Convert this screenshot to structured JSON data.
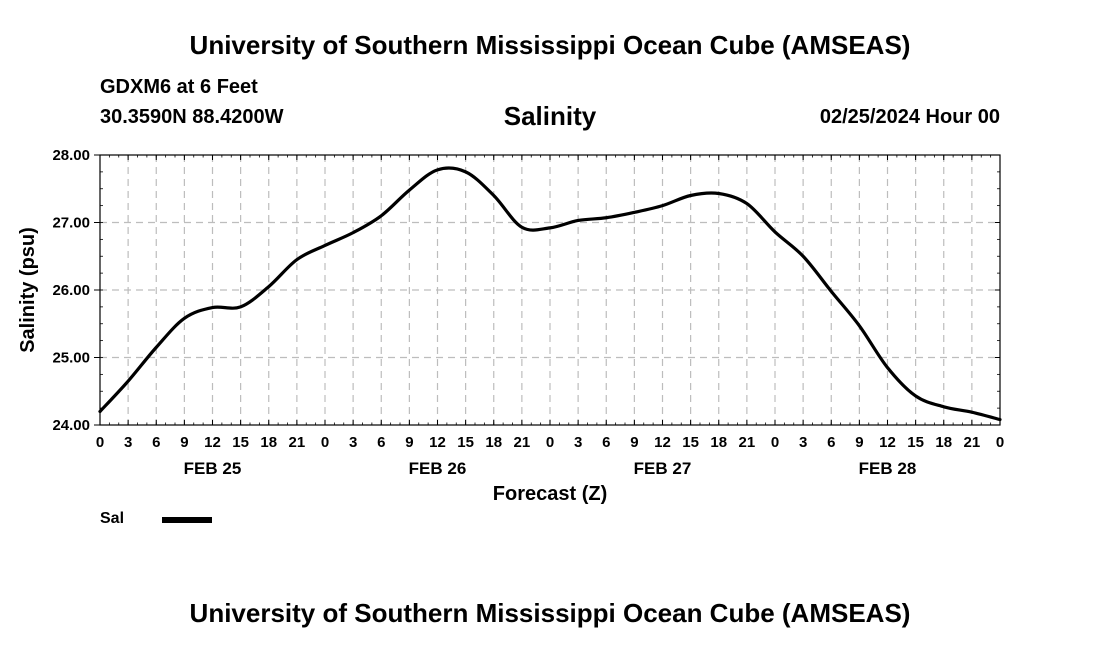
{
  "header": {
    "title": "University of Southern Mississippi Ocean Cube (AMSEAS)",
    "station": "GDXM6 at 6 Feet",
    "coordinates": "30.3590N  88.4200W",
    "parameter": "Salinity",
    "datetime": "02/25/2024 Hour 00"
  },
  "footer": {
    "title": "University of Southern Mississippi Ocean Cube (AMSEAS)"
  },
  "legend": {
    "label": "Sal",
    "color": "#000000"
  },
  "chart_data": {
    "type": "line",
    "title": "Salinity",
    "xlabel": "Forecast (Z)",
    "ylabel": "Salinity (psu)",
    "ylim": [
      24.0,
      28.0
    ],
    "yticks": [
      "24.00",
      "25.00",
      "26.00",
      "27.00",
      "28.00"
    ],
    "xlim": [
      0,
      96
    ],
    "xtick_labels": [
      "0",
      "3",
      "6",
      "9",
      "12",
      "15",
      "18",
      "21",
      "0",
      "3",
      "6",
      "9",
      "12",
      "15",
      "18",
      "21",
      "0",
      "3",
      "6",
      "9",
      "12",
      "15",
      "18",
      "21",
      "0",
      "3",
      "6",
      "9",
      "12",
      "15",
      "18",
      "21",
      "0"
    ],
    "day_labels": [
      "FEB 25",
      "FEB 26",
      "FEB 27",
      "FEB 28"
    ],
    "grid": true,
    "series": [
      {
        "name": "Sal",
        "color": "#000000",
        "x": [
          0,
          3,
          6,
          9,
          12,
          15,
          18,
          21,
          24,
          27,
          30,
          33,
          36,
          39,
          42,
          45,
          48,
          51,
          54,
          57,
          60,
          63,
          66,
          69,
          72,
          75,
          78,
          81,
          84,
          87,
          90,
          93,
          96
        ],
        "values": [
          24.2,
          24.65,
          25.15,
          25.58,
          25.74,
          25.75,
          26.05,
          26.45,
          26.66,
          26.85,
          27.1,
          27.48,
          27.78,
          27.75,
          27.4,
          26.93,
          26.92,
          27.03,
          27.07,
          27.15,
          27.25,
          27.4,
          27.43,
          27.28,
          26.86,
          26.5,
          25.98,
          25.47,
          24.85,
          24.43,
          24.27,
          24.19,
          24.08
        ]
      }
    ]
  }
}
